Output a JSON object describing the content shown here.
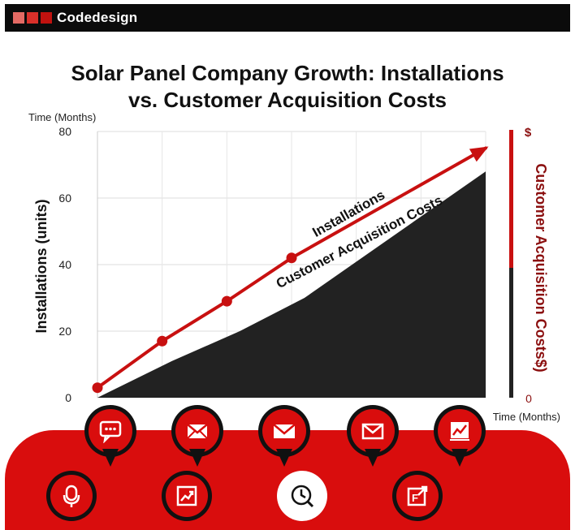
{
  "header": {
    "brand": "Codedesign",
    "logo_colors": [
      "#e46a64",
      "#d9302a",
      "#c0120f"
    ]
  },
  "chart_data": {
    "type": "line",
    "title_line1": "Solar Panel Company Growth: Installations",
    "title_line2": "vs. Customer Acquisition Costs",
    "top_axis_label": "Time (Months)",
    "xlabel": "Time (Months)",
    "ylabel": "Installations (units)",
    "y2label": "Customer Acquisition Costs$)",
    "y2_top_label": "$",
    "y2_bottom_label": "0",
    "ylim": [
      0,
      80
    ],
    "yticks": [
      0,
      20,
      40,
      60,
      80
    ],
    "x": [
      0,
      1,
      2,
      3,
      4,
      5,
      6
    ],
    "series": [
      {
        "name": "Installations",
        "kind": "line-with-markers",
        "color": "#c81010",
        "points": [
          [
            0,
            3
          ],
          [
            1,
            17
          ],
          [
            2,
            29
          ],
          [
            3,
            42
          ]
        ],
        "trend_to": [
          6,
          75
        ]
      },
      {
        "name": "Customer Acquisition Costs",
        "kind": "area",
        "color": "#222222",
        "points": [
          [
            0,
            0
          ],
          [
            1.15,
            11
          ],
          [
            2.2,
            20
          ],
          [
            3.2,
            30
          ],
          [
            6,
            68
          ]
        ]
      }
    ],
    "grid": true
  },
  "bottom_icons": {
    "pins": [
      "chat-bubble-icon",
      "envelope-open-icon",
      "envelope-icon",
      "envelope-outline-icon",
      "chart-up-icon"
    ],
    "circles": [
      "headset-icon",
      "growth-chart-icon",
      "clock-search-icon",
      "finance-arrow-icon"
    ]
  }
}
